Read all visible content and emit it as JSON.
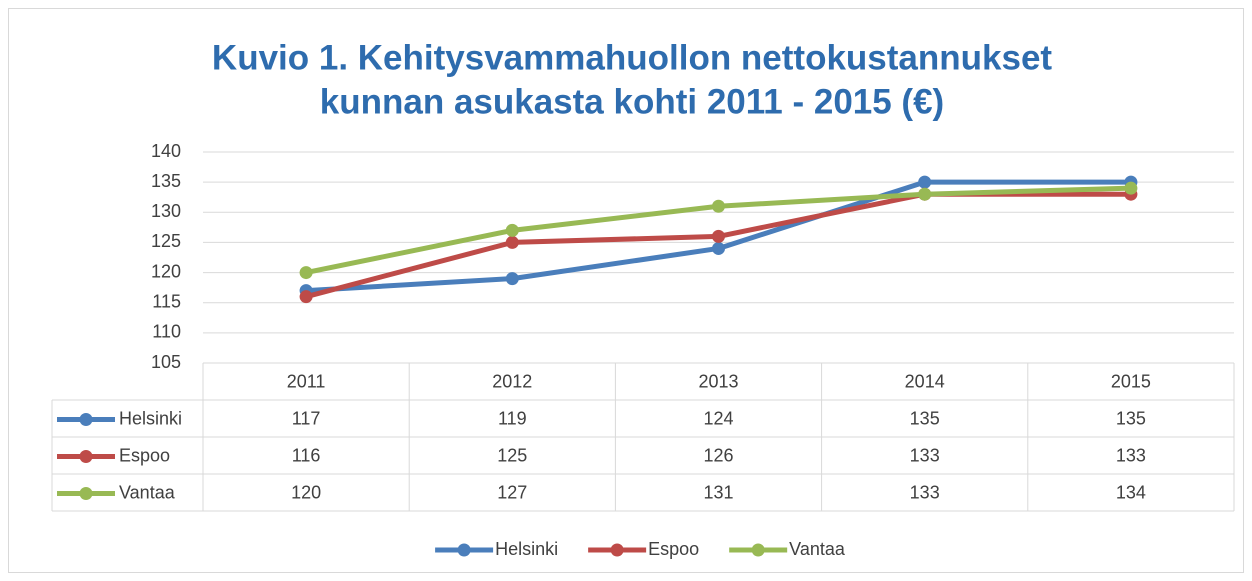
{
  "chart_data": {
    "type": "line",
    "title": [
      "Kuvio 1. Kehitysvammahuollon nettokustannukset",
      "kunnan asukasta kohti 2011 - 2015 (€)"
    ],
    "categories": [
      "2011",
      "2012",
      "2013",
      "2014",
      "2015"
    ],
    "series": [
      {
        "name": "Helsinki",
        "color": "#4a7ebb",
        "values": [
          117,
          119,
          124,
          135,
          135
        ]
      },
      {
        "name": "Espoo",
        "color": "#be4b48",
        "values": [
          116,
          125,
          126,
          133,
          133
        ]
      },
      {
        "name": "Vantaa",
        "color": "#98b954",
        "values": [
          120,
          127,
          131,
          133,
          134
        ]
      }
    ],
    "ylim": [
      105,
      140
    ],
    "yticks": [
      105,
      110,
      115,
      120,
      125,
      130,
      135,
      140
    ],
    "grid": true,
    "legend": "bottom",
    "data_table": true
  }
}
